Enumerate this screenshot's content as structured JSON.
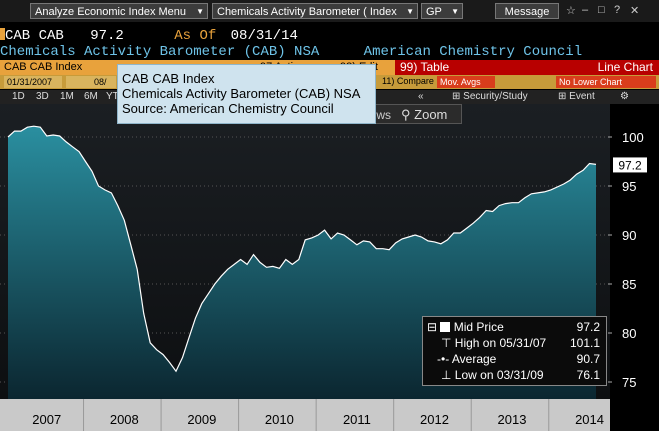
{
  "topbar": {
    "menu_label": "Analyze Economic Index Menu",
    "title_label": "Chemicals Activity Barometer ( Index",
    "gp_label": "GP",
    "message_label": "Message"
  },
  "header": {
    "ticker_left": "CAB CAB",
    "value": "97.2",
    "as_of_label": "As Of",
    "as_of_date": "08/31/14",
    "full_name": "Chemicals Activity Barometer (CAB) NSA",
    "source": "American Chemistry Council"
  },
  "toolbar": {
    "index_label": "CAB CAB Index",
    "actions_label": "Actions",
    "edit_label": "Edit",
    "table_label": "Table",
    "line_chart_label": "Line Chart",
    "start_date": "01/31/2007",
    "end_date_partial": "08/",
    "compare_label": "Compare",
    "mov_avgs_label": "Mov. Avgs",
    "no_lower_chart_label": "No Lower Chart",
    "security_study_label": "Security/Study",
    "event_label": "Event",
    "news_label": "News",
    "zoom_label": "Zoom"
  },
  "periods": [
    "1D",
    "3D",
    "1M",
    "6M",
    "YTD"
  ],
  "tooltip": {
    "line1": "CAB CAB  Index",
    "line2": "Chemicals Activity Barometer (CAB) NSA",
    "line3": "Source: American Chemistry Council"
  },
  "legend": {
    "mid_label": "Mid Price",
    "mid_value": "97.2",
    "high_label": "High on 05/31/07",
    "high_value": "101.1",
    "avg_label": "Average",
    "avg_value": "90.7",
    "low_label": "Low on 03/31/09",
    "low_value": "76.1"
  },
  "last_value_label": "97.2",
  "colors": {
    "area_top": "#2a8fa0",
    "area_bottom": "#0b2630",
    "line": "#ffffff",
    "accent_orange": "#e8a23c",
    "accent_red": "#b80000"
  },
  "chart_data": {
    "type": "area",
    "title": "",
    "x_labels": [
      "2007",
      "2008",
      "2009",
      "2010",
      "2011",
      "2012",
      "2013",
      "2014"
    ],
    "ylim": [
      74,
      104
    ],
    "y_ticks": [
      75,
      80,
      85,
      90,
      95,
      100
    ],
    "series": [
      {
        "x": [
          "2007-01",
          "2007-02",
          "2007-03",
          "2007-04",
          "2007-05",
          "2007-06",
          "2007-07",
          "2007-08",
          "2007-09",
          "2007-10",
          "2007-11",
          "2007-12",
          "2008-01",
          "2008-02",
          "2008-03",
          "2008-04",
          "2008-05",
          "2008-06",
          "2008-07",
          "2008-08",
          "2008-09",
          "2008-10",
          "2008-11",
          "2008-12",
          "2009-01",
          "2009-02",
          "2009-03",
          "2009-04",
          "2009-05",
          "2009-06",
          "2009-07",
          "2009-08",
          "2009-09",
          "2009-10",
          "2009-11",
          "2009-12",
          "2010-01",
          "2010-02",
          "2010-03",
          "2010-04",
          "2010-05",
          "2010-06",
          "2010-07",
          "2010-08",
          "2010-09",
          "2010-10",
          "2010-11",
          "2010-12",
          "2011-01",
          "2011-02",
          "2011-03",
          "2011-04",
          "2011-05",
          "2011-06",
          "2011-07",
          "2011-08",
          "2011-09",
          "2011-10",
          "2011-11",
          "2011-12",
          "2012-01",
          "2012-02",
          "2012-03",
          "2012-04",
          "2012-05",
          "2012-06",
          "2012-07",
          "2012-08",
          "2012-09",
          "2012-10",
          "2012-11",
          "2012-12",
          "2013-01",
          "2013-02",
          "2013-03",
          "2013-04",
          "2013-05",
          "2013-06",
          "2013-07",
          "2013-08",
          "2013-09",
          "2013-10",
          "2013-11",
          "2013-12",
          "2014-01",
          "2014-02",
          "2014-03",
          "2014-04",
          "2014-05",
          "2014-06",
          "2014-07",
          "2014-08"
        ],
        "values": [
          100.0,
          100.6,
          100.6,
          101.0,
          101.1,
          101.0,
          100.1,
          100.2,
          100.1,
          99.5,
          99.0,
          98.5,
          97.5,
          96.5,
          95.0,
          94.6,
          94.3,
          93.0,
          91.5,
          89.0,
          86.5,
          82.0,
          79.0,
          78.3,
          77.8,
          77.0,
          76.1,
          77.5,
          79.5,
          81.5,
          83.0,
          84.0,
          85.0,
          85.8,
          86.5,
          87.0,
          87.5,
          87.0,
          88.0,
          87.2,
          86.7,
          86.8,
          86.6,
          87.5,
          87.0,
          87.5,
          89.5,
          89.7,
          90.0,
          90.5,
          89.6,
          90.2,
          90.0,
          89.5,
          89.0,
          89.4,
          89.3,
          88.6,
          88.6,
          88.5,
          89.2,
          89.6,
          89.8,
          90.0,
          89.8,
          89.4,
          89.3,
          89.1,
          89.5,
          90.2,
          90.2,
          90.7,
          91.2,
          91.8,
          92.5,
          92.4,
          93.0,
          93.2,
          93.3,
          93.3,
          93.8,
          94.2,
          94.3,
          94.4,
          94.6,
          94.9,
          95.2,
          95.6,
          96.2,
          96.6,
          97.3,
          97.2
        ]
      }
    ],
    "grid": "horizontal-dotted",
    "legend_placement": "bottom-right"
  }
}
